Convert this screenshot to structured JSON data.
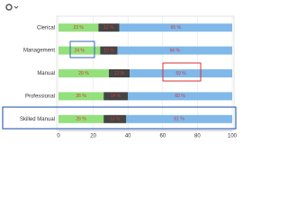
{
  "chart_data": {
    "type": "stacked-barh",
    "categories": [
      "Clerical",
      "Management",
      "Manual",
      "Professional",
      "Skilled Manual"
    ],
    "series": [
      {
        "color": "#93e07c",
        "values": [
          23,
          24,
          29,
          26,
          26
        ],
        "value_labels": [
          "23 %",
          "24 %",
          "29 %",
          "26 %",
          "26 %"
        ]
      },
      {
        "color": "#444444",
        "values": [
          12,
          10,
          12,
          14,
          13
        ],
        "value_labels": [
          "12 %",
          "10 %",
          "12 %",
          "14 %",
          "13 %"
        ]
      },
      {
        "color": "#80b8ea",
        "values": [
          65,
          66,
          59,
          60,
          61
        ],
        "value_labels": [
          "65 %",
          "66 %",
          "59 %",
          "60 %",
          "61 %"
        ]
      }
    ],
    "xlim": [
      0,
      100
    ],
    "xticks": [
      0,
      20,
      40,
      60,
      80,
      100
    ],
    "grid": true
  }
}
